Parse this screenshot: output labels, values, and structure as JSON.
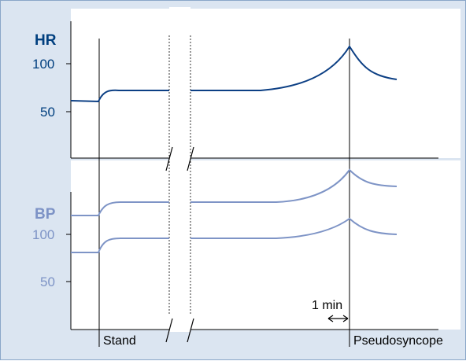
{
  "diagram": {
    "hr": {
      "label": "HR",
      "ticks": [
        "100",
        "50"
      ],
      "color": "#0c3f84"
    },
    "bp": {
      "label": "BP",
      "ticks": [
        "100",
        "50"
      ],
      "color": "#7e94c6"
    },
    "events": {
      "stand": "Stand",
      "pseudosyncope": "Pseudosyncope"
    },
    "scale_label": "1 min",
    "panel_background": "#dbe5f1",
    "plot_background": "#ffffff"
  }
}
